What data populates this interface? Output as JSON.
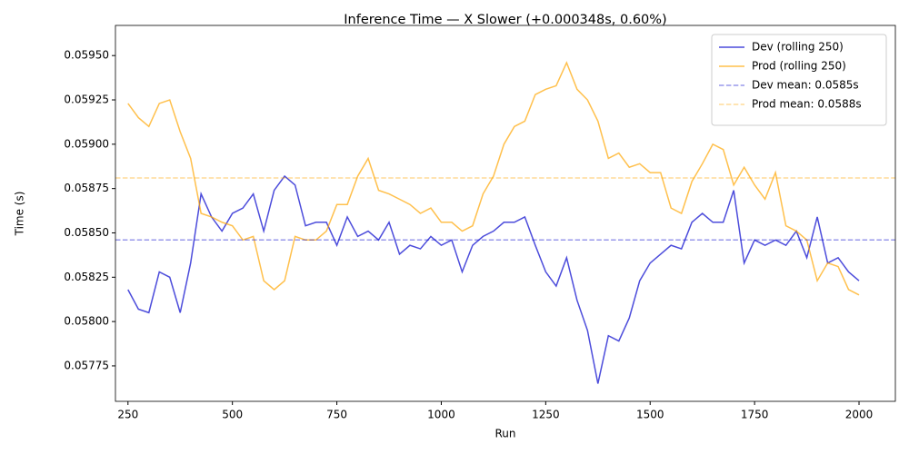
{
  "chart_data": {
    "type": "line",
    "title": "Inference Time — X Slower (+0.000348s, 0.60%)",
    "x_label": "Run",
    "y_label": "Time (s)",
    "x": [
      250,
      275,
      300,
      325,
      350,
      375,
      400,
      425,
      450,
      475,
      500,
      525,
      550,
      575,
      600,
      625,
      650,
      675,
      700,
      725,
      750,
      775,
      800,
      825,
      850,
      875,
      900,
      925,
      950,
      975,
      1000,
      1025,
      1050,
      1075,
      1100,
      1125,
      1150,
      1175,
      1200,
      1225,
      1250,
      1275,
      1300,
      1325,
      1350,
      1375,
      1400,
      1425,
      1450,
      1475,
      1500,
      1525,
      1550,
      1575,
      1600,
      1625,
      1650,
      1675,
      1700,
      1725,
      1750,
      1775,
      1800,
      1825,
      1850,
      1875,
      1900,
      1925,
      1950,
      1975,
      2000
    ],
    "series": [
      {
        "name": "Dev (rolling 250)",
        "color": "#0000cc",
        "values": [
          0.05818,
          0.05807,
          0.05805,
          0.05828,
          0.05825,
          0.05805,
          0.05833,
          0.05872,
          0.05859,
          0.05851,
          0.05861,
          0.05864,
          0.05872,
          0.05851,
          0.05874,
          0.05882,
          0.05877,
          0.05854,
          0.05856,
          0.05856,
          0.05843,
          0.05859,
          0.05848,
          0.05851,
          0.05846,
          0.05856,
          0.05838,
          0.05843,
          0.05841,
          0.05848,
          0.05843,
          0.05846,
          0.05828,
          0.05843,
          0.05848,
          0.05851,
          0.05856,
          0.05856,
          0.05859,
          0.05843,
          0.05828,
          0.0582,
          0.05836,
          0.05812,
          0.05795,
          0.05765,
          0.05792,
          0.05789,
          0.05802,
          0.05823,
          0.05833,
          0.05838,
          0.05843,
          0.05841,
          0.05856,
          0.05861,
          0.05856,
          0.05856,
          0.05874,
          0.05833,
          0.05846,
          0.05843,
          0.05846,
          0.05843,
          0.05851,
          0.05836,
          0.05859,
          0.05833,
          0.05836,
          0.05828,
          0.05823
        ]
      },
      {
        "name": "Prod (rolling 250)",
        "color": "#ffa500",
        "values": [
          0.05923,
          0.05915,
          0.0591,
          0.05923,
          0.05925,
          0.05907,
          0.05892,
          0.05861,
          0.05859,
          0.05856,
          0.05854,
          0.05846,
          0.05848,
          0.05823,
          0.05818,
          0.05823,
          0.05848,
          0.05846,
          0.05846,
          0.05851,
          0.05866,
          0.05866,
          0.05882,
          0.05892,
          0.05874,
          0.05872,
          0.05869,
          0.05866,
          0.05861,
          0.05864,
          0.05856,
          0.05856,
          0.05851,
          0.05854,
          0.05872,
          0.05882,
          0.059,
          0.0591,
          0.05913,
          0.05928,
          0.05931,
          0.05933,
          0.05946,
          0.05931,
          0.05925,
          0.05913,
          0.05892,
          0.05895,
          0.05887,
          0.05889,
          0.05884,
          0.05884,
          0.05864,
          0.05861,
          0.05879,
          0.05889,
          0.059,
          0.05897,
          0.05877,
          0.05887,
          0.05877,
          0.05869,
          0.05884,
          0.05854,
          0.05851,
          0.05846,
          0.05823,
          0.05833,
          0.05831,
          0.05818,
          0.05815
        ]
      }
    ],
    "hlines": [
      {
        "name": "Dev mean: 0.0585s",
        "value": 0.05846,
        "color": "#0000cc"
      },
      {
        "name": "Prod mean: 0.0588s",
        "value": 0.05881,
        "color": "#ffa500"
      }
    ],
    "xlim": [
      220,
      2087
    ],
    "xticks": [
      250,
      500,
      750,
      1000,
      1250,
      1500,
      1750,
      2000
    ],
    "ylim": [
      0.05755,
      0.05967
    ],
    "yticks": [
      0.05775,
      {
        "value": 0.058,
        "label": "0.05800"
      },
      0.05825,
      {
        "value": 0.0585,
        "label": "0.05850"
      },
      0.05875,
      {
        "value": 0.059,
        "label": "0.05900"
      },
      0.05925,
      {
        "value": 0.0595,
        "label": "0.05950"
      }
    ],
    "legend": "upper right"
  }
}
